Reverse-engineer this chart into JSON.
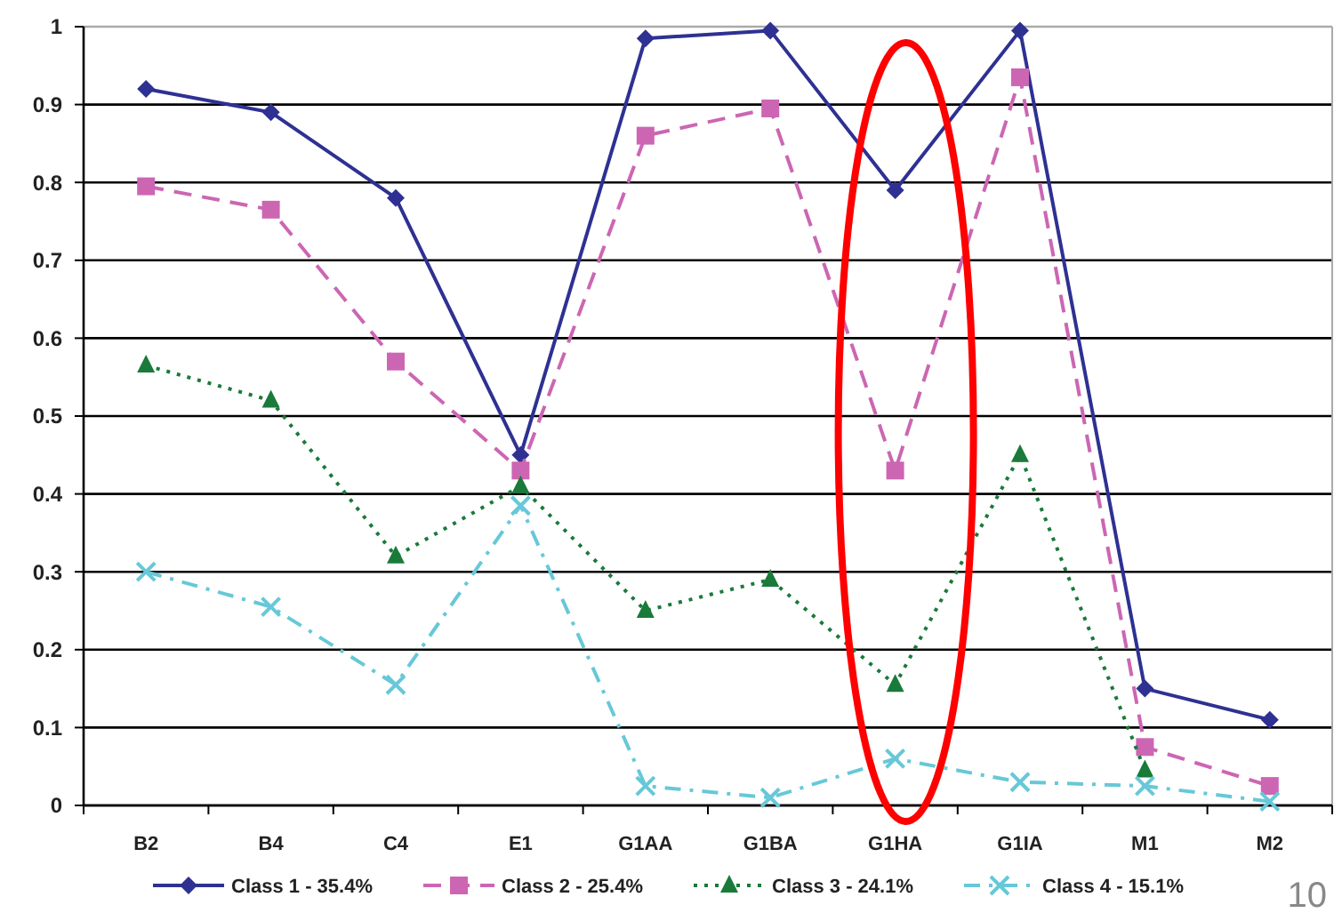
{
  "chart_data": {
    "type": "line",
    "categories": [
      "B2",
      "B4",
      "C4",
      "E1",
      "G1AA",
      "G1BA",
      "G1HA",
      "G1IA",
      "M1",
      "M2"
    ],
    "series": [
      {
        "name": "Class 1 - 35.4%",
        "color": "#2e3192",
        "marker": "diamond",
        "line_style": "solid",
        "values": [
          0.92,
          0.89,
          0.78,
          0.45,
          0.985,
          0.995,
          0.79,
          0.995,
          0.15,
          0.11
        ]
      },
      {
        "name": "Class 2 - 25.4%",
        "color": "#cc66b3",
        "marker": "square",
        "line_style": "dashed",
        "values": [
          0.795,
          0.765,
          0.57,
          0.43,
          0.86,
          0.895,
          0.43,
          0.935,
          0.075,
          0.025
        ]
      },
      {
        "name": "Class 3 - 24.1%",
        "color": "#1a7a3a",
        "marker": "triangle",
        "line_style": "dotted",
        "values": [
          0.565,
          0.52,
          0.32,
          0.41,
          0.25,
          0.29,
          0.155,
          0.45,
          0.045,
          null
        ]
      },
      {
        "name": "Class 4 - 15.1%",
        "color": "#66c8d8",
        "marker": "cross",
        "line_style": "dashdot",
        "values": [
          0.3,
          0.255,
          0.155,
          0.385,
          0.025,
          0.01,
          0.06,
          0.03,
          0.025,
          0.005
        ]
      }
    ],
    "ylim": [
      0,
      1
    ],
    "yticks": [
      0,
      0.1,
      0.2,
      0.3,
      0.4,
      0.5,
      0.6,
      0.7,
      0.8,
      0.9,
      1
    ],
    "grid": "y",
    "legend": "bottom",
    "annotations": [
      "10"
    ]
  }
}
